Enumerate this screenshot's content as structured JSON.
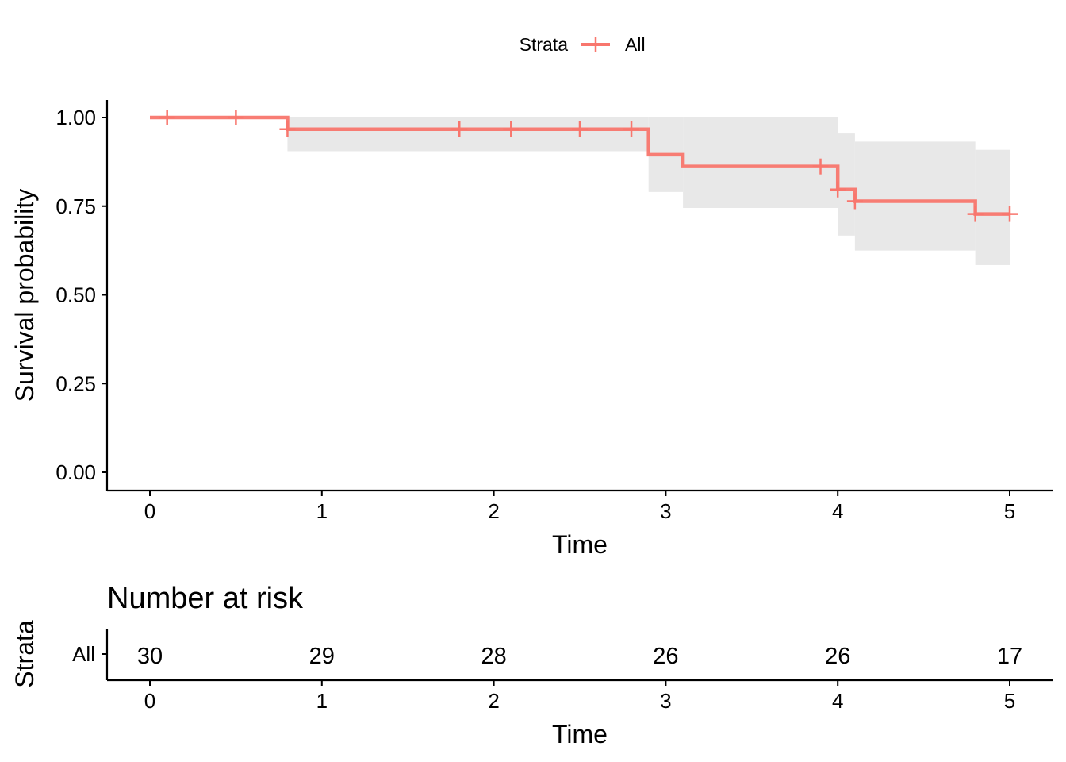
{
  "legend": {
    "title": "Strata",
    "label": "All"
  },
  "colors": {
    "series": "#F8766D",
    "band": "#E8E8E8",
    "axis": "#000000"
  },
  "chart_data": [
    {
      "type": "line",
      "subtype": "kaplan-meier-step",
      "xlabel": "Time",
      "ylabel": "Survival probability",
      "xlim": [
        0,
        5
      ],
      "ylim": [
        0,
        1
      ],
      "xticks": [
        "0",
        "1",
        "2",
        "3",
        "4",
        "5"
      ],
      "yticks": [
        "0.00",
        "0.25",
        "0.50",
        "0.75",
        "1.00"
      ],
      "grid": false,
      "legend_position": "top",
      "series": [
        {
          "name": "All",
          "steps": [
            {
              "x": 0,
              "y": 1.0,
              "lower": 1.0,
              "upper": 1.0
            },
            {
              "x": 0.8,
              "y": 0.967,
              "lower": 0.905,
              "upper": 1.0
            },
            {
              "x": 2.9,
              "y": 0.895,
              "lower": 0.79,
              "upper": 1.0
            },
            {
              "x": 3.1,
              "y": 0.862,
              "lower": 0.745,
              "upper": 1.0
            },
            {
              "x": 4.0,
              "y": 0.797,
              "lower": 0.667,
              "upper": 0.955
            },
            {
              "x": 4.1,
              "y": 0.764,
              "lower": 0.625,
              "upper": 0.932
            },
            {
              "x": 4.8,
              "y": 0.728,
              "lower": 0.584,
              "upper": 0.909
            }
          ],
          "end_x": 5.0,
          "censored": [
            {
              "x": 0.1,
              "y": 1.0
            },
            {
              "x": 0.5,
              "y": 1.0
            },
            {
              "x": 0.8,
              "y": 0.967
            },
            {
              "x": 1.8,
              "y": 0.967
            },
            {
              "x": 2.1,
              "y": 0.967
            },
            {
              "x": 2.5,
              "y": 0.967
            },
            {
              "x": 2.8,
              "y": 0.967
            },
            {
              "x": 3.9,
              "y": 0.862
            },
            {
              "x": 4.0,
              "y": 0.797
            },
            {
              "x": 4.1,
              "y": 0.764
            },
            {
              "x": 4.8,
              "y": 0.728
            },
            {
              "x": 5.0,
              "y": 0.728
            }
          ]
        }
      ]
    },
    {
      "type": "table",
      "title": "Number at risk",
      "xlabel": "Time",
      "ylabel": "Strata",
      "xticks": [
        "0",
        "1",
        "2",
        "3",
        "4",
        "5"
      ],
      "rows": [
        {
          "name": "All",
          "values": [
            "30",
            "29",
            "28",
            "26",
            "26",
            "17"
          ]
        }
      ]
    }
  ]
}
